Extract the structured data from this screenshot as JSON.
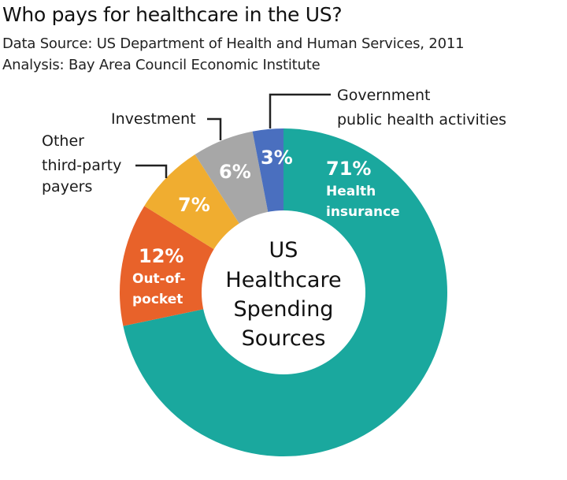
{
  "header": {
    "title": "Who pays for healthcare in the US?",
    "source": "Data Source: US Department of Health and Human Services, 2011",
    "analysis": "Analysis: Bay Area Council Economic Institute"
  },
  "center_label": [
    "US",
    "Healthcare",
    "Spending",
    "Sources"
  ],
  "chart_data": {
    "type": "pie",
    "title": "Who pays for healthcare in the US?",
    "subtitle": "US Healthcare Spending Sources",
    "donut": true,
    "categories": [
      "Health insurance",
      "Out-of-pocket",
      "Other third-party payers",
      "Investment",
      "Government public health activities"
    ],
    "values": [
      71,
      12,
      7,
      6,
      3
    ],
    "unit": "%",
    "colors": [
      "#1aa89e",
      "#e8622a",
      "#f0ad30",
      "#a7a7a7",
      "#4a6fbf"
    ],
    "labels": [
      "71%",
      "12%",
      "7%",
      "6%",
      "3%"
    ]
  },
  "slices": [
    {
      "pct": "71%",
      "inside": [
        "Health",
        "insurance"
      ],
      "color": "#1aa89e"
    },
    {
      "pct": "12%",
      "inside": [
        "Out-of-",
        "pocket"
      ],
      "color": "#e8622a"
    },
    {
      "pct": "7%",
      "outside": [
        "Other",
        "third-party",
        "payers"
      ],
      "color": "#f0ad30"
    },
    {
      "pct": "6%",
      "outside": [
        "Investment"
      ],
      "color": "#a7a7a7"
    },
    {
      "pct": "3%",
      "outside": [
        "Government",
        "public health activities"
      ],
      "color": "#4a6fbf"
    }
  ]
}
